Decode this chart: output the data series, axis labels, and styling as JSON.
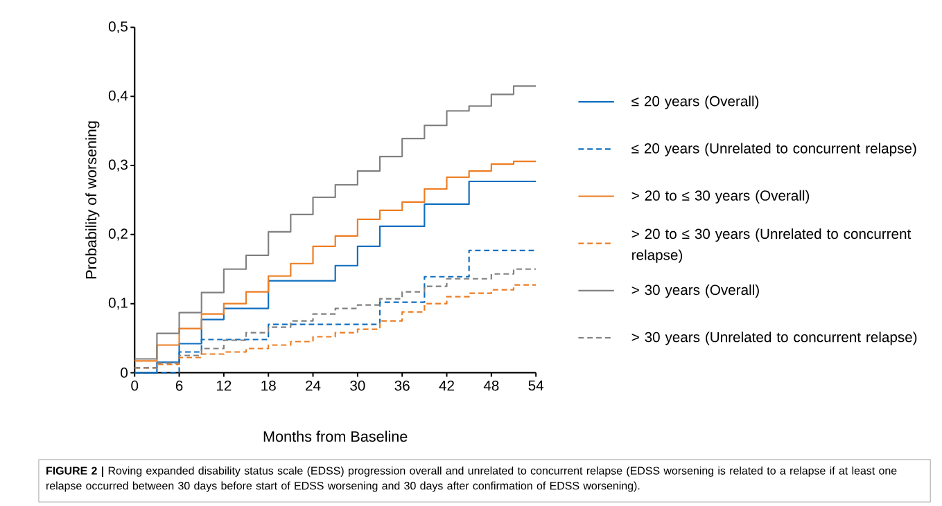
{
  "chart_data": {
    "type": "step",
    "xlabel": "Months from Baseline",
    "ylabel": "Probability of worsening",
    "x": [
      0,
      3,
      6,
      9,
      12,
      15,
      18,
      21,
      24,
      27,
      30,
      33,
      36,
      39,
      42,
      45,
      48,
      51,
      54
    ],
    "series": [
      {
        "name": "≤ 20 years (Overall)",
        "color": "#0f6fc0",
        "line_style": "solid",
        "values": [
          0.0,
          0.015,
          0.042,
          0.077,
          0.093,
          0.093,
          0.133,
          0.133,
          0.133,
          0.155,
          0.183,
          0.212,
          0.212,
          0.244,
          0.244,
          0.277,
          0.277,
          0.277,
          0.277
        ]
      },
      {
        "name": "≤ 20 years (Unrelated to concurrent relapse)",
        "color": "#0f6fc0",
        "line_style": "dashed",
        "values": [
          0.0,
          0.0,
          0.03,
          0.048,
          0.048,
          0.048,
          0.07,
          0.07,
          0.07,
          0.07,
          0.07,
          0.102,
          0.102,
          0.139,
          0.139,
          0.177,
          0.177,
          0.177,
          0.177
        ]
      },
      {
        "name": "> 20 to ≤ 30 years (Overall)",
        "color": "#ed7d22",
        "line_style": "solid",
        "values": [
          0.017,
          0.04,
          0.064,
          0.085,
          0.1,
          0.117,
          0.14,
          0.158,
          0.183,
          0.198,
          0.222,
          0.235,
          0.247,
          0.266,
          0.283,
          0.292,
          0.302,
          0.306,
          0.306
        ]
      },
      {
        "name": "> 20 to ≤ 30 years (Unrelated to concurrent relapse)",
        "color": "#ed7d22",
        "line_style": "dashed",
        "values": [
          0.007,
          0.012,
          0.022,
          0.027,
          0.03,
          0.035,
          0.04,
          0.045,
          0.052,
          0.058,
          0.063,
          0.075,
          0.088,
          0.1,
          0.11,
          0.115,
          0.12,
          0.127,
          0.127
        ]
      },
      {
        "name": "> 30 years (Overall)",
        "color": "#808080",
        "line_style": "solid",
        "values": [
          0.02,
          0.057,
          0.087,
          0.116,
          0.15,
          0.17,
          0.204,
          0.229,
          0.254,
          0.272,
          0.292,
          0.313,
          0.339,
          0.358,
          0.379,
          0.386,
          0.403,
          0.415,
          0.415
        ]
      },
      {
        "name": "> 30 years (Unrelated to concurrent relapse)",
        "color": "#808080",
        "line_style": "dashed",
        "values": [
          0.007,
          0.014,
          0.025,
          0.035,
          0.047,
          0.058,
          0.066,
          0.075,
          0.085,
          0.093,
          0.098,
          0.107,
          0.117,
          0.125,
          0.136,
          0.136,
          0.143,
          0.15,
          0.15
        ]
      }
    ],
    "xlim": [
      0,
      54
    ],
    "xticks": [
      0,
      6,
      12,
      18,
      24,
      30,
      36,
      42,
      48,
      54
    ],
    "ylim": [
      0,
      0.5
    ],
    "yticks": [
      {
        "value": 0,
        "label": "0"
      },
      {
        "value": 0.1,
        "label": "0,1"
      },
      {
        "value": 0.2,
        "label": "0,2"
      },
      {
        "value": 0.3,
        "label": "0,3"
      },
      {
        "value": 0.4,
        "label": "0,4"
      },
      {
        "value": 0.5,
        "label": "0,5"
      }
    ],
    "grid": false,
    "legend": "right",
    "annotations": [
      "**FIGURE 2 |** Roving expanded disability status scale (EDSS) progression overall and unrelated to concurrent relapse (EDSS worsening is related to a relapse if at least one relapse occurred between 30 days before start of EDSS worsening and 30 days after confirmation of EDSS worsening)."
    ]
  }
}
